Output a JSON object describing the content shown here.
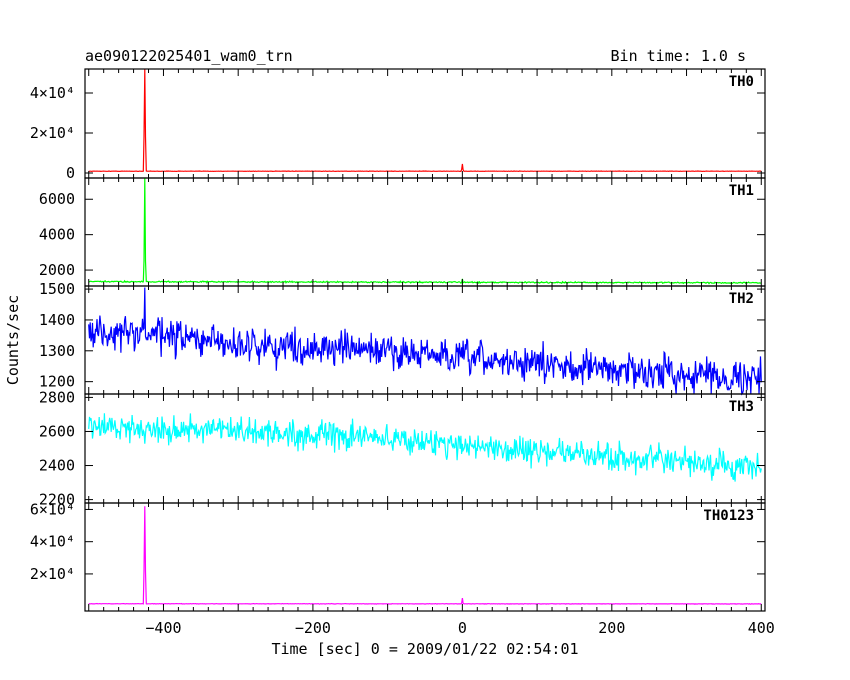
{
  "header": {
    "title": "ae090122025401_wam0_trn",
    "bin_time": "Bin time: 1.0 s"
  },
  "axis": {
    "xlabel": "Time [sec] 0 = 2009/01/22 02:54:01",
    "ylabel": "Counts/sec"
  },
  "chart_data": {
    "type": "line",
    "title": "ae090122025401_wam0_trn",
    "xlabel": "Time [sec] 0 = 2009/01/22 02:54:01",
    "ylabel": "Counts/sec",
    "xlim": [
      -505,
      405
    ],
    "x_ticks": [
      -400,
      -200,
      0,
      200,
      400
    ],
    "x_tick_labels": [
      "−400",
      "−200",
      "0",
      "200",
      "400"
    ],
    "panels": [
      {
        "name": "TH0",
        "color": "#ff0000",
        "ylim": [
          -2500,
          52000
        ],
        "y_ticks": [
          0,
          20000,
          40000
        ],
        "y_tick_labels": [
          "0",
          "2×10⁴",
          "4×10⁴"
        ],
        "baseline": [
          [
            -500,
            900
          ],
          [
            400,
            900
          ]
        ],
        "noise": 60,
        "spikes": [
          [
            -425,
            52000
          ],
          [
            0,
            4500
          ]
        ]
      },
      {
        "name": "TH1",
        "color": "#00ff00",
        "ylim": [
          1100,
          7200
        ],
        "y_ticks": [
          2000,
          4000,
          6000
        ],
        "y_tick_labels": [
          "2000",
          "4000",
          "6000"
        ],
        "baseline": [
          [
            -500,
            1350
          ],
          [
            400,
            1280
          ]
        ],
        "noise": 25,
        "spikes": [
          [
            -425,
            7200
          ],
          [
            0,
            1500
          ]
        ]
      },
      {
        "name": "TH2",
        "color": "#0000ff",
        "ylim": [
          1160,
          1510
        ],
        "y_ticks": [
          1200,
          1300,
          1400,
          1500
        ],
        "y_tick_labels": [
          "1200",
          "1300",
          "1400",
          "1500"
        ],
        "baseline": [
          [
            -500,
            1360
          ],
          [
            -425,
            1355
          ],
          [
            -300,
            1320
          ],
          [
            -100,
            1300
          ],
          [
            0,
            1275
          ],
          [
            200,
            1240
          ],
          [
            400,
            1210
          ]
        ],
        "noise": 38,
        "spikes": [
          [
            -425,
            1505
          ]
        ]
      },
      {
        "name": "TH3",
        "color": "#00ffff",
        "ylim": [
          2180,
          2820
        ],
        "y_ticks": [
          2200,
          2400,
          2600,
          2800
        ],
        "y_tick_labels": [
          "2200",
          "2400",
          "2600",
          "2800"
        ],
        "baseline": [
          [
            -500,
            2630
          ],
          [
            -300,
            2600
          ],
          [
            -100,
            2560
          ],
          [
            0,
            2520
          ],
          [
            200,
            2450
          ],
          [
            400,
            2380
          ]
        ],
        "noise": 55,
        "spikes": []
      },
      {
        "name": "TH0123",
        "color": "#ff00ff",
        "ylim": [
          -3000,
          64000
        ],
        "y_ticks": [
          20000,
          40000,
          60000
        ],
        "y_tick_labels": [
          "2×10⁴",
          "4×10⁴",
          "6×10⁴"
        ],
        "baseline": [
          [
            -500,
            1500
          ],
          [
            400,
            1400
          ]
        ],
        "noise": 90,
        "spikes": [
          [
            -425,
            62000
          ],
          [
            0,
            5000
          ]
        ]
      }
    ],
    "grid": false
  }
}
